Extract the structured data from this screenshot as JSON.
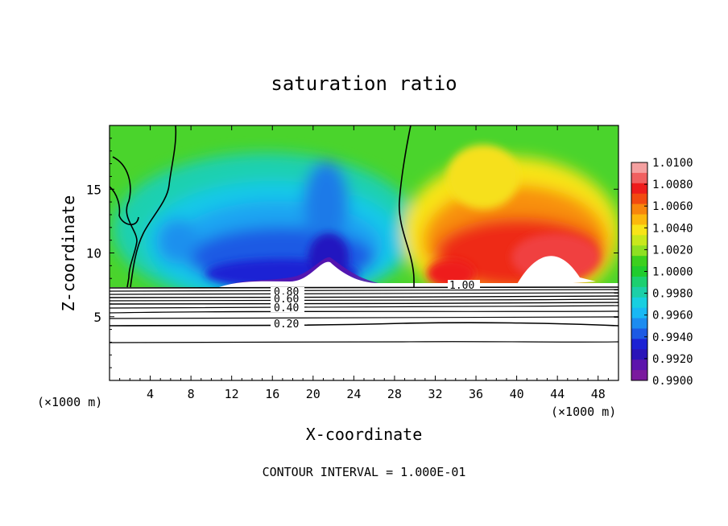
{
  "chart_data": {
    "type": "heatmap",
    "title": "saturation ratio",
    "xlabel": "X-coordinate",
    "ylabel": "Z-coordinate",
    "x_unit": "(×1000 m)",
    "x_unit_right": "(×1000 m)",
    "xlim": [
      0,
      50
    ],
    "ylim": [
      0,
      20
    ],
    "x_ticks": [
      4,
      8,
      12,
      16,
      20,
      24,
      28,
      32,
      36,
      40,
      44,
      48
    ],
    "y_ticks": [
      5,
      10,
      15
    ],
    "footer": "CONTOUR INTERVAL = 1.000E-01",
    "colorbar": {
      "ticks": [
        "1.0100",
        "1.0080",
        "1.0060",
        "1.0040",
        "1.0020",
        "1.0000",
        "0.9980",
        "0.9960",
        "0.9940",
        "0.9920",
        "0.9900"
      ],
      "colors": [
        "#f4a0a0",
        "#f06060",
        "#ee1c1c",
        "#f24a10",
        "#f8860c",
        "#fcb80c",
        "#f8e418",
        "#c8e81c",
        "#8ee022",
        "#3cd01e",
        "#20cc2e",
        "#1cd070",
        "#1ccfa8",
        "#18cfe0",
        "#18b8f4",
        "#1c8cf0",
        "#1c5ae4",
        "#1c22d4",
        "#2a14b8",
        "#5c14ac",
        "#7a1a9e"
      ]
    },
    "contours": [
      {
        "label": "0.80",
        "z": 7.3
      },
      {
        "label": "0.60",
        "z": 6.9
      },
      {
        "label": "0.40",
        "z": 6.1
      },
      {
        "label": "0.20",
        "z": 4.5
      },
      {
        "label": "1.00",
        "z": 7.4
      }
    ],
    "field_regions": [
      {
        "name": "background",
        "value": 1.0005
      },
      {
        "name": "left subsaturated core",
        "x_center": 18,
        "z_center": 10,
        "value": 0.991
      },
      {
        "name": "right supersaturated core",
        "x_center": 40,
        "z_center": 10,
        "value": 1.007
      }
    ]
  }
}
